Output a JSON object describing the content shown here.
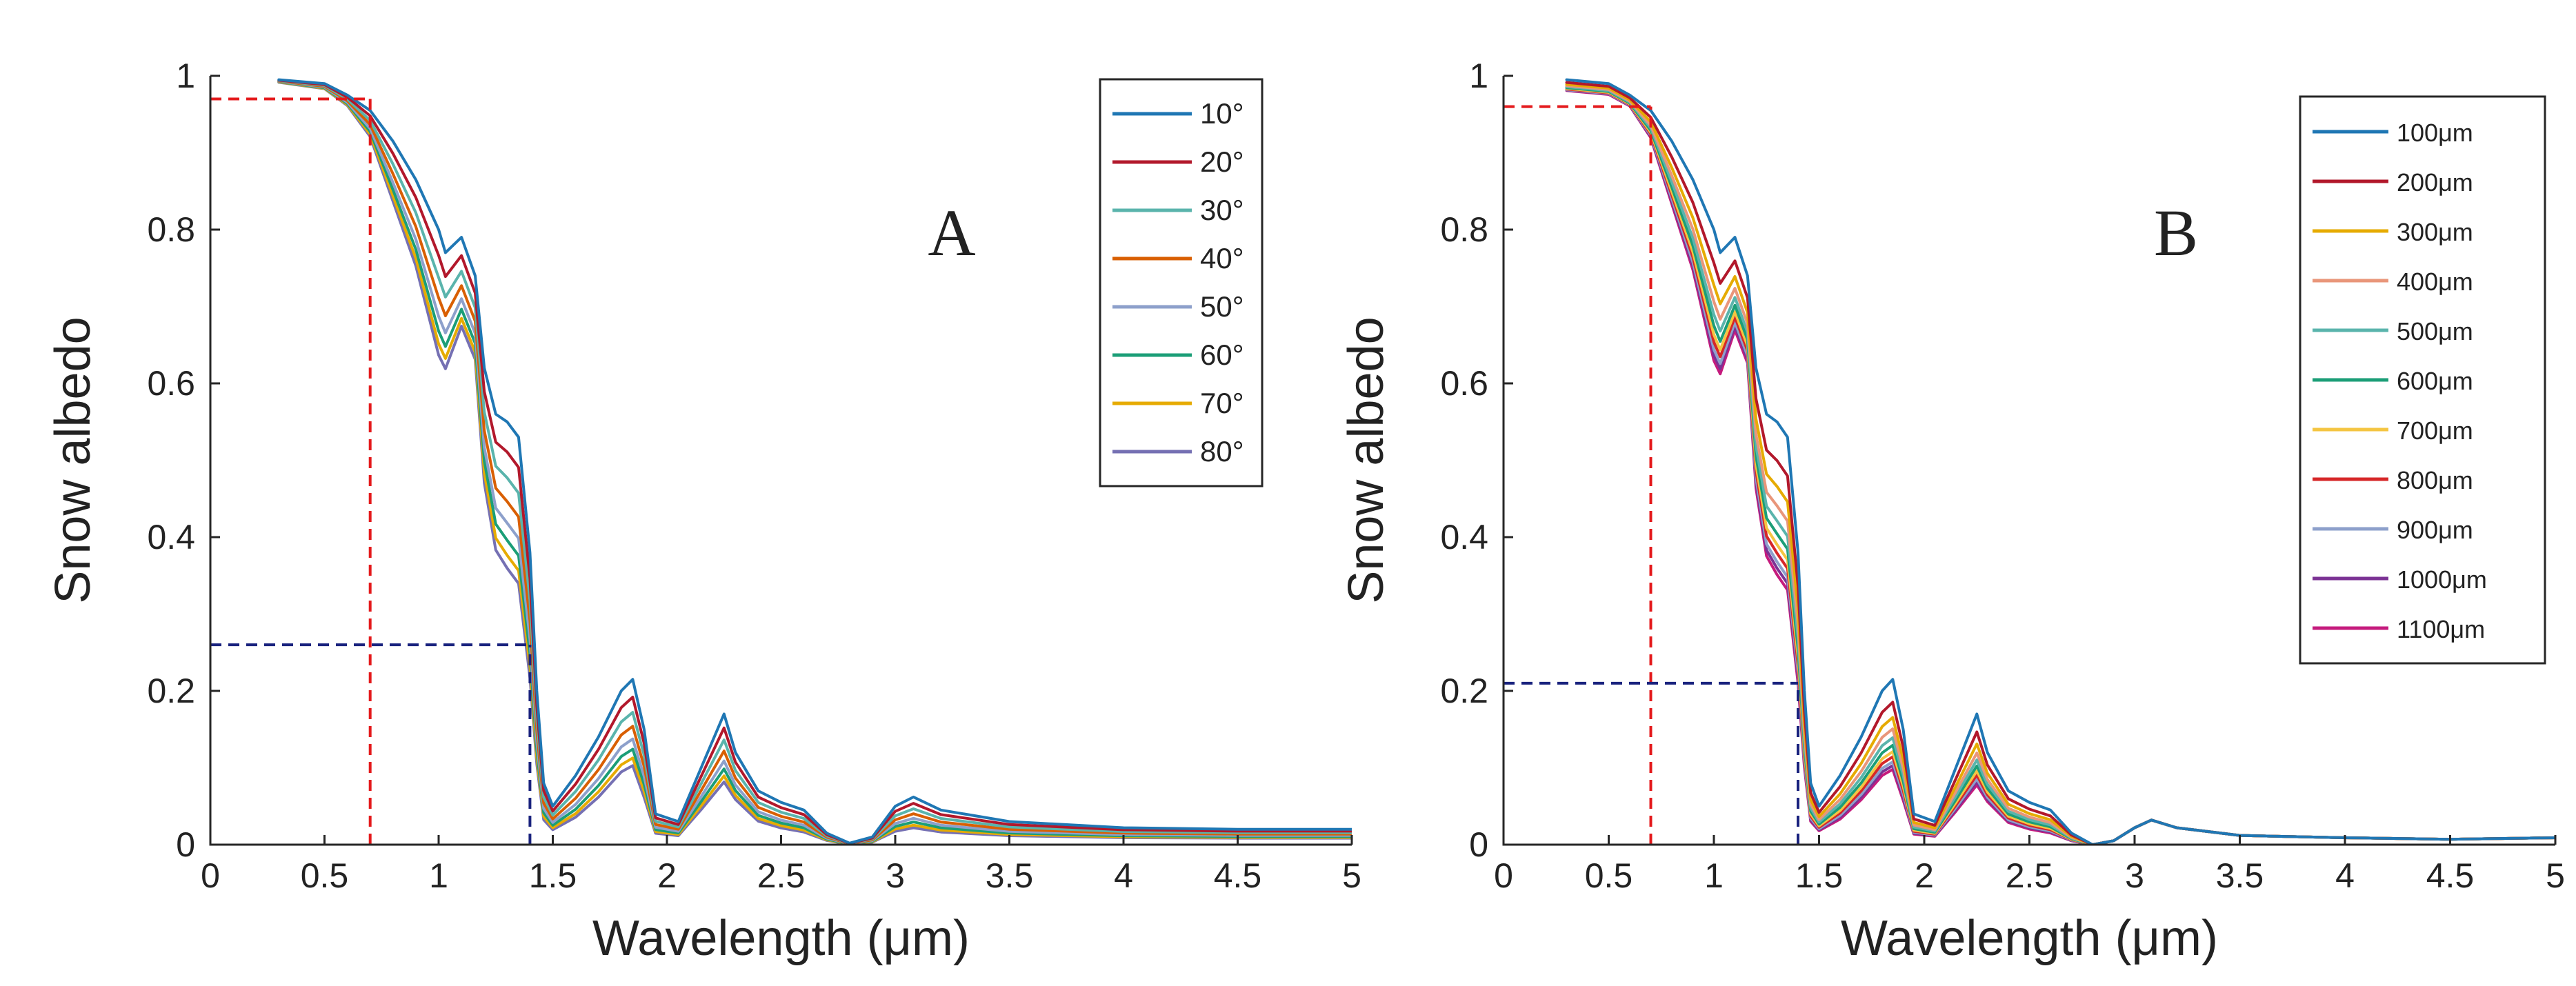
{
  "chart_data": [
    {
      "type": "line",
      "panel_label": "A",
      "xlabel": "Wavelength (μm)",
      "ylabel": "Snow albedo",
      "xlim": [
        0,
        5
      ],
      "ylim": [
        0,
        1
      ],
      "x_ticks": [
        0,
        0.5,
        1,
        1.5,
        2,
        2.5,
        3,
        3.5,
        4,
        4.5,
        5
      ],
      "x_tick_labels": [
        "0",
        "0.5",
        "1",
        "1.5",
        "2",
        "2.5",
        "3",
        "3.5",
        "4",
        "4.5",
        "5"
      ],
      "y_ticks": [
        0,
        0.2,
        0.4,
        0.6,
        0.8,
        1
      ],
      "y_tick_labels": [
        "0",
        "0.2",
        "0.4",
        "0.6",
        "0.8",
        "1"
      ],
      "legend_position": "top-right",
      "series": [
        {
          "name": "10°",
          "color": "#1f77b4",
          "level": 1.0
        },
        {
          "name": "20°",
          "color": "#b2182b",
          "level": 0.86
        },
        {
          "name": "30°",
          "color": "#5ab4ac",
          "level": 0.74
        },
        {
          "name": "40°",
          "color": "#d95f02",
          "level": 0.63
        },
        {
          "name": "50°",
          "color": "#8da0cb",
          "level": 0.53
        },
        {
          "name": "60°",
          "color": "#1b9e77",
          "level": 0.45
        },
        {
          "name": "70°",
          "color": "#e6ab02",
          "level": 0.38
        },
        {
          "name": "80°",
          "color": "#7570b3",
          "level": 0.32
        }
      ],
      "guides": [
        {
          "x": 0.7,
          "y": 0.97,
          "color": "#e41a1c"
        },
        {
          "x": 1.4,
          "y": 0.26,
          "color": "#1a237e"
        }
      ]
    },
    {
      "type": "line",
      "panel_label": "B",
      "xlabel": "Wavelength (μm)",
      "ylabel": "Snow albedo",
      "xlim": [
        0,
        5
      ],
      "ylim": [
        0,
        1
      ],
      "x_ticks": [
        0,
        0.5,
        1,
        1.5,
        2,
        2.5,
        3,
        3.5,
        4,
        4.5,
        5
      ],
      "x_tick_labels": [
        "0",
        "0.5",
        "1",
        "1.5",
        "2",
        "2.5",
        "3",
        "3.5",
        "4",
        "4.5",
        "5"
      ],
      "y_ticks": [
        0,
        0.2,
        0.4,
        0.6,
        0.8,
        1
      ],
      "y_tick_labels": [
        "0",
        "0.2",
        "0.4",
        "0.6",
        "0.8",
        "1"
      ],
      "legend_position": "top-right",
      "series": [
        {
          "name": "100μm",
          "color": "#1f77b4",
          "level": 1.0
        },
        {
          "name": "200μm",
          "color": "#b2182b",
          "level": 0.82
        },
        {
          "name": "300μm",
          "color": "#e6ab02",
          "level": 0.7
        },
        {
          "name": "400μm",
          "color": "#e9967a",
          "level": 0.61
        },
        {
          "name": "500μm",
          "color": "#5ab4ac",
          "level": 0.54
        },
        {
          "name": "600μm",
          "color": "#1b9e77",
          "level": 0.48
        },
        {
          "name": "700μm",
          "color": "#f4c542",
          "level": 0.43
        },
        {
          "name": "800μm",
          "color": "#d62728",
          "level": 0.39
        },
        {
          "name": "900μm",
          "color": "#8da0cb",
          "level": 0.35
        },
        {
          "name": "1000μm",
          "color": "#7b3294",
          "level": 0.32
        },
        {
          "name": "1100μm",
          "color": "#c51b7d",
          "level": 0.29
        }
      ],
      "guides": [
        {
          "x": 0.7,
          "y": 0.96,
          "color": "#e41a1c"
        },
        {
          "x": 1.4,
          "y": 0.21,
          "color": "#1a237e"
        }
      ]
    }
  ]
}
